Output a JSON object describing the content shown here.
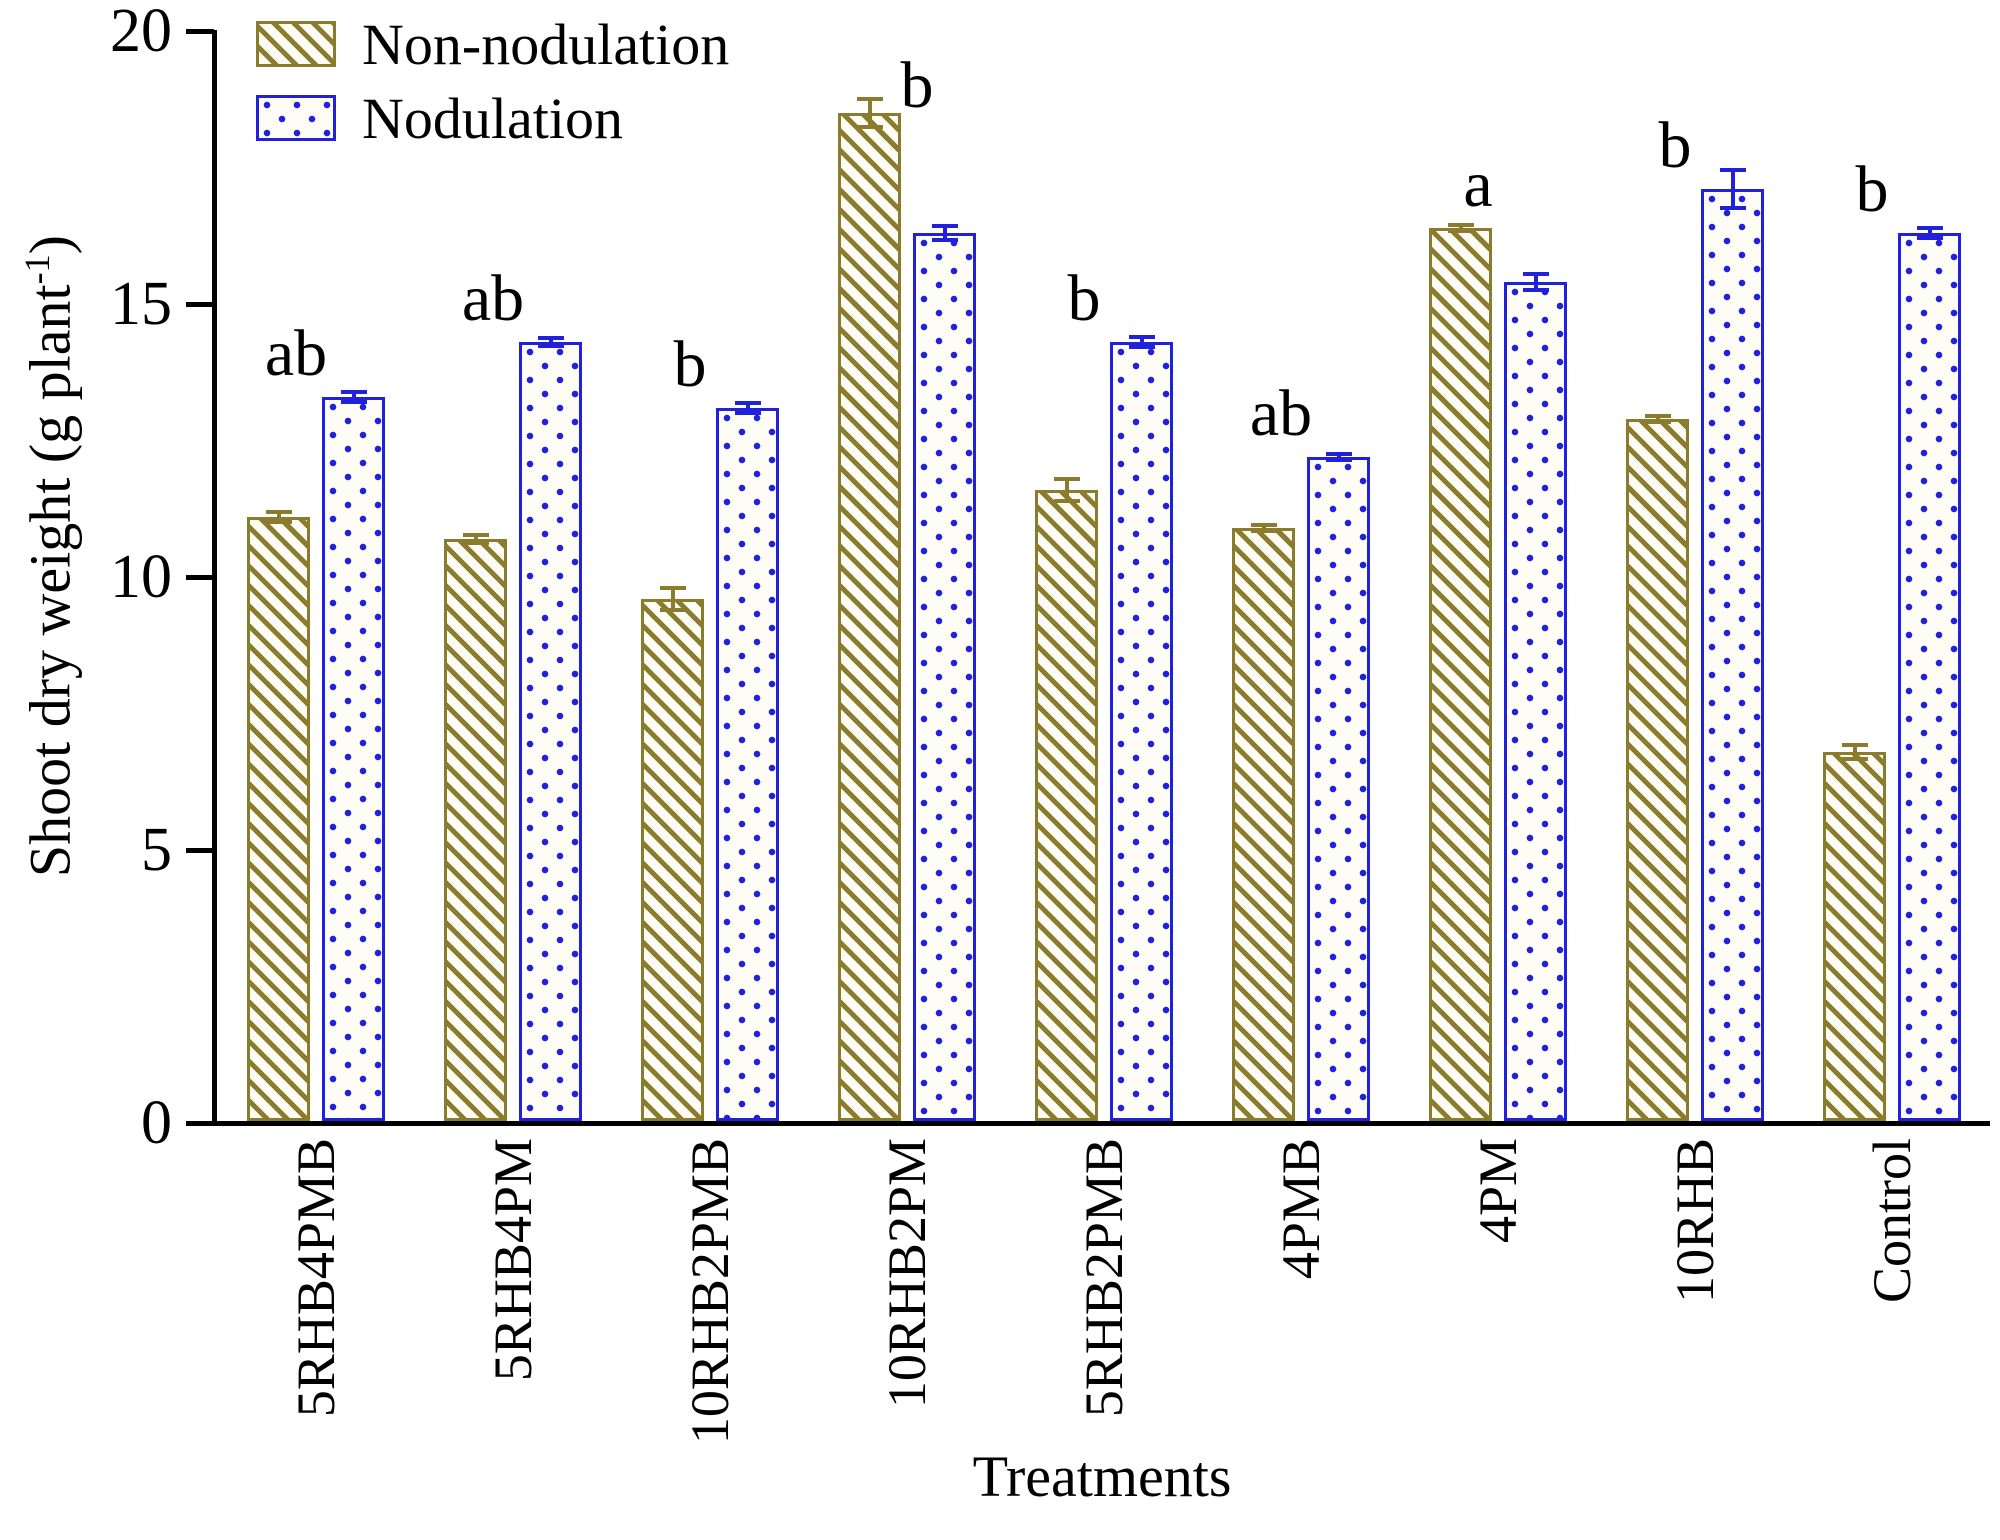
{
  "figure": {
    "ylabel_main": "Shoot dry weight (g plant",
    "ylabel_sup": "-1",
    "ylabel_close": ")",
    "xlabel": "Treatments",
    "background": "#ffffff"
  },
  "legend": {
    "items": [
      {
        "label": "Non-nodulation",
        "swatch": "olive-diagonal-hatch"
      },
      {
        "label": "Nodulation",
        "swatch": "blue-dot-grid"
      }
    ]
  },
  "chart_data": {
    "type": "bar",
    "title": "",
    "categories": [
      "5RHB4PMB",
      "5RHB4PM",
      "10RHB2PMB",
      "10RHB2PM",
      "5RHB2PMB",
      "4PMB",
      "4PM",
      "10RHB",
      "Control"
    ],
    "series": [
      {
        "name": "Non-nodulation",
        "color": "#8a7b2d",
        "pattern": "diagonal-hatch",
        "values": [
          11.1,
          10.7,
          9.6,
          18.5,
          11.6,
          10.9,
          16.4,
          12.9,
          6.8
        ],
        "errors": [
          0.1,
          0.07,
          0.2,
          0.25,
          0.2,
          0.06,
          0.06,
          0.06,
          0.12
        ]
      },
      {
        "name": "Nodulation",
        "color": "#2020dd",
        "pattern": "dot-grid",
        "values": [
          13.3,
          14.3,
          13.1,
          16.3,
          14.3,
          12.2,
          15.4,
          17.1,
          16.3
        ],
        "errors": [
          0.1,
          0.08,
          0.1,
          0.12,
          0.1,
          0.06,
          0.15,
          0.35,
          0.1
        ]
      }
    ],
    "significance_letters": [
      "ab",
      "ab",
      "b",
      "b",
      "b",
      "ab",
      "a",
      "b",
      "b"
    ],
    "xlabel": "Treatments",
    "ylabel": "Shoot dry weight (g plant-1)",
    "yticks": [
      0,
      5,
      10,
      15,
      20
    ],
    "ylim": [
      0,
      20
    ],
    "grid": false,
    "legend_position": "upper-left"
  }
}
